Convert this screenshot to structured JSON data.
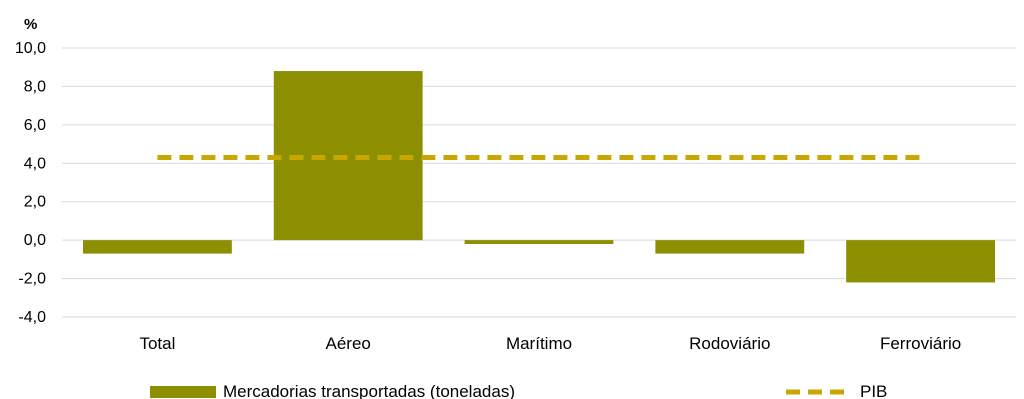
{
  "chart_data": {
    "type": "bar",
    "unit_label": "%",
    "categories": [
      "Total",
      "Aéreo",
      "Marítimo",
      "Rodoviário",
      "Ferroviário"
    ],
    "series": [
      {
        "name": "Mercadorias transportadas (toneladas)",
        "type": "bar",
        "values": [
          -0.7,
          8.8,
          -0.2,
          -0.7,
          -2.2
        ],
        "color": "#8b8f00"
      },
      {
        "name": "PIB",
        "type": "line",
        "style": "dashed",
        "values": [
          4.3,
          4.3,
          4.3,
          4.3,
          4.3
        ],
        "color": "#c8a800"
      }
    ],
    "y_ticks": [
      "10,0",
      "8,0",
      "6,0",
      "4,0",
      "2,0",
      "0,0",
      "-2,0",
      "-4,0"
    ],
    "ylim": [
      -4,
      10
    ],
    "grid": true,
    "legend": "bottom"
  }
}
